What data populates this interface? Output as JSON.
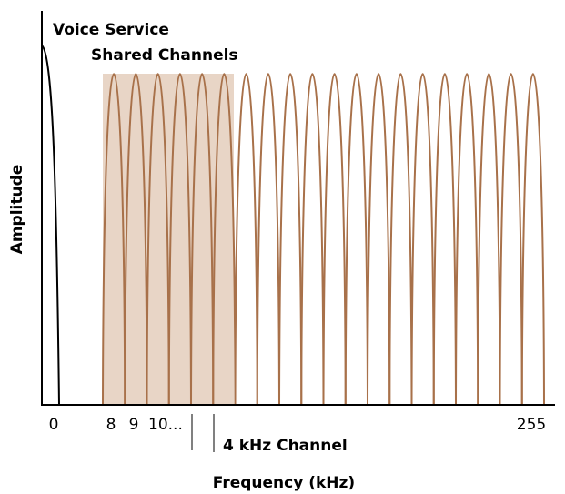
{
  "labels": {
    "voice": "Voice Service",
    "shared": "Shared Channels",
    "y_axis": "Amplitude",
    "x_axis": "Frequency (kHz)",
    "channel_width": "4 kHz Channel"
  },
  "x_labels": [
    "0",
    "8",
    "9",
    "10...",
    "255"
  ]
}
